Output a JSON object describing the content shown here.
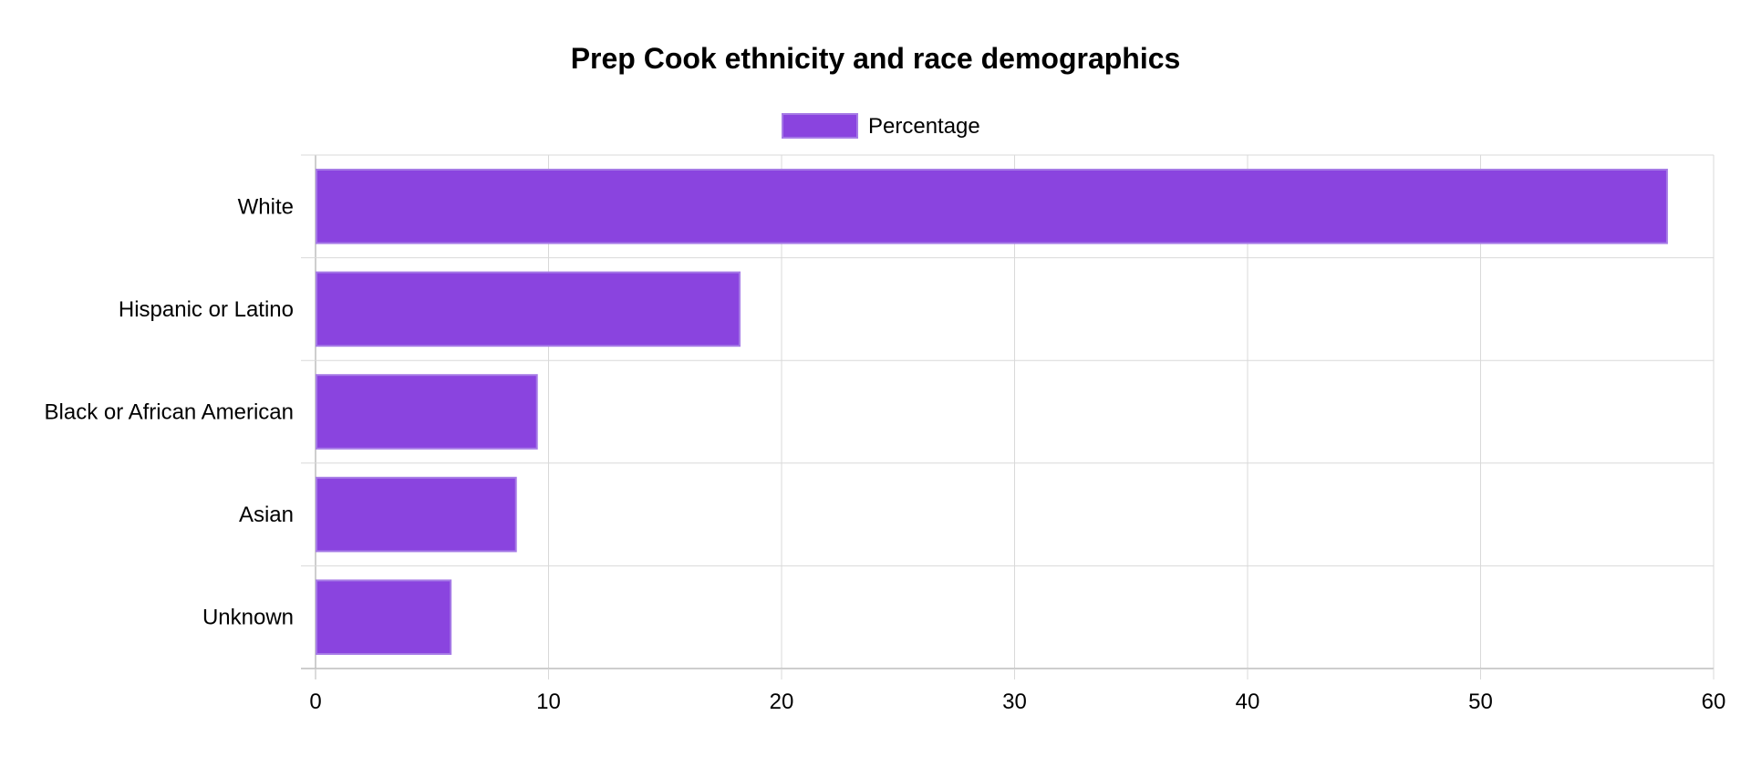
{
  "chart_data": {
    "type": "bar",
    "orientation": "horizontal",
    "title": "Prep Cook ethnicity and race demographics",
    "categories": [
      "White",
      "Hispanic or Latino",
      "Black or African American",
      "Asian",
      "Unknown"
    ],
    "series": [
      {
        "name": "Percentage",
        "values": [
          58,
          18.2,
          9.5,
          8.6,
          5.8
        ],
        "color": "#8a44df"
      }
    ],
    "xlim": [
      0,
      60
    ],
    "x_ticks": [
      0,
      10,
      20,
      30,
      40,
      50,
      60
    ],
    "grid": true,
    "legend_position": "top-center"
  }
}
